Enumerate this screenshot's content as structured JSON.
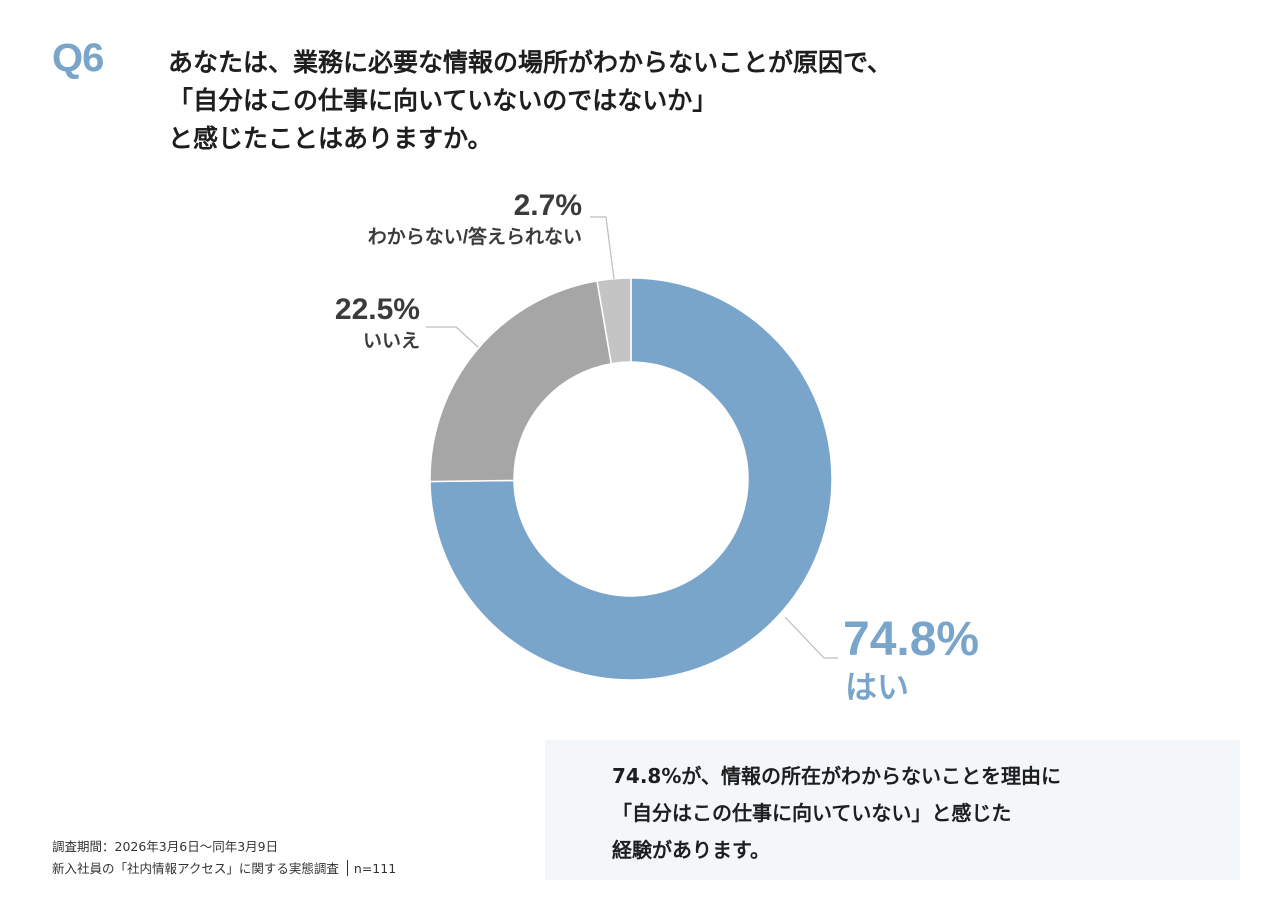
{
  "header": {
    "q_label": "Q6",
    "question_lines": [
      "あなたは、業務に必要な情報の場所がわからないことが原因で、",
      "「自分はこの仕事に向いていないのではないか」",
      "と感じたことはありますか。"
    ]
  },
  "colors": {
    "accent": "#79a5cb",
    "yes": "#79a5cb",
    "no": "#a6a6a6",
    "unknown": "#c4c4c4",
    "label_dark": "#3b3b3b",
    "leader": "#bdbdbd",
    "box_bg": "#f3f7fa"
  },
  "chart_data": {
    "type": "pie",
    "donut": true,
    "start_angle_deg": 0,
    "direction": "clockwise",
    "legend": "none",
    "slices": [
      {
        "label": "はい",
        "value": 74.8,
        "display": "74.8%",
        "color": "#79a5cb"
      },
      {
        "label": "いいえ",
        "value": 22.5,
        "display": "22.5%",
        "color": "#a6a6a6"
      },
      {
        "label": "わからない/答えられない",
        "value": 2.7,
        "display": "2.7%",
        "color": "#c4c4c4"
      }
    ]
  },
  "footer": {
    "period": "調査期間：2026年3月6日～同年3月9日",
    "survey": "新入社員の「社内情報アクセス」に関する実態調査",
    "n": "n=111"
  },
  "summary": {
    "lines": [
      "74.8%が、情報の所在がわからないことを理由に",
      "「自分はこの仕事に向いていない」と感じた",
      "経験があります。"
    ]
  }
}
